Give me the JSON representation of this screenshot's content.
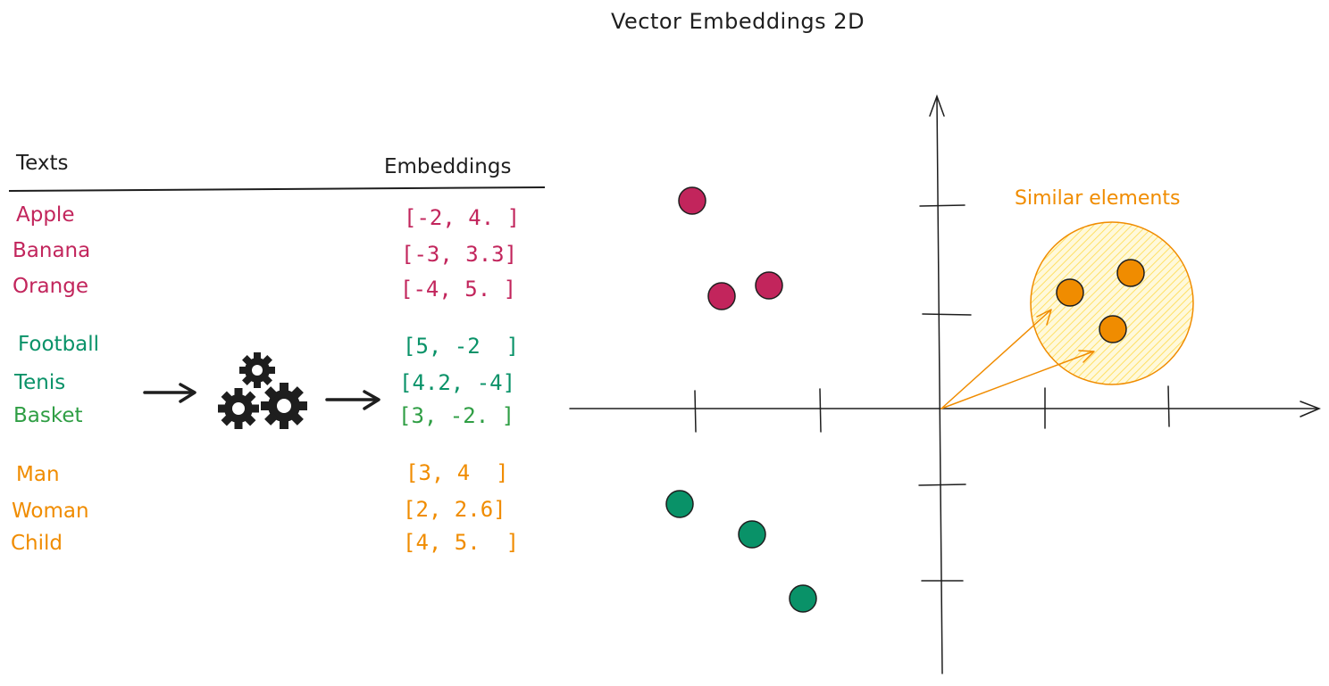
{
  "title": "Vector Embeddings 2D",
  "table": {
    "header_texts": "Texts",
    "header_embeddings": "Embeddings",
    "groups": [
      {
        "color": "#c2255c",
        "items": [
          {
            "text": "Apple",
            "embedding": "[-2, 4. ]"
          },
          {
            "text": "Banana",
            "embedding": "[-3, 3.3]"
          },
          {
            "text": "Orange",
            "embedding": "[-4, 5. ]"
          }
        ]
      },
      {
        "color": "#099268",
        "items": [
          {
            "text": "Football",
            "embedding": "[5, -2  ]"
          },
          {
            "text": "Tenis",
            "embedding": "[4.2, -4]"
          },
          {
            "text": "Basket",
            "embedding": "[3, -2. ]"
          }
        ]
      },
      {
        "color": "#f08c00",
        "items": [
          {
            "text": "Man",
            "embedding": "[3, 4  ]"
          },
          {
            "text": "Woman",
            "embedding": "[2, 2.6]"
          },
          {
            "text": "Child",
            "embedding": "[4, 5.  ]"
          }
        ]
      }
    ]
  },
  "pipeline": {
    "icon": "gears-icon"
  },
  "plot": {
    "annotation": "Similar elements",
    "annotation_color": "#f08c00",
    "cluster_fill": "#ffec99"
  }
}
